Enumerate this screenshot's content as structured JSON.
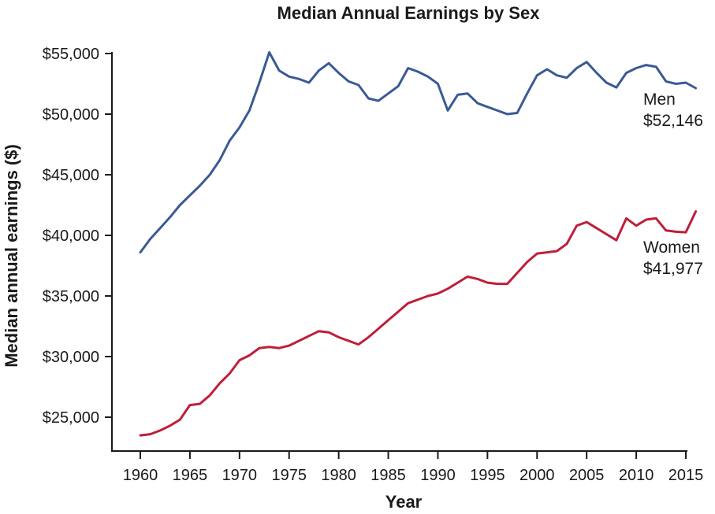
{
  "chart_data": {
    "type": "line",
    "title": "Median Annual Earnings by Sex",
    "xlabel": "Year",
    "ylabel": "Median annual earnings ($)",
    "grid": false,
    "legend_position": "inline-right-annotations",
    "x_axis": {
      "min": 1960,
      "max": 2015,
      "tick_step": 5
    },
    "y_axis": {
      "min": 25000,
      "max": 55000,
      "tick_step": 5000
    },
    "x_ticks": [
      {
        "value": 1960,
        "label": "1960"
      },
      {
        "value": 1965,
        "label": "1965"
      },
      {
        "value": 1970,
        "label": "1970"
      },
      {
        "value": 1975,
        "label": "1975"
      },
      {
        "value": 1980,
        "label": "1980"
      },
      {
        "value": 1985,
        "label": "1985"
      },
      {
        "value": 1990,
        "label": "1990"
      },
      {
        "value": 1995,
        "label": "1995"
      },
      {
        "value": 2000,
        "label": "2000"
      },
      {
        "value": 2005,
        "label": "2005"
      },
      {
        "value": 2010,
        "label": "2010"
      },
      {
        "value": 2015,
        "label": "2015"
      }
    ],
    "y_ticks": [
      {
        "value": 55000,
        "label": "$55,000"
      },
      {
        "value": 50000,
        "label": "$50,000"
      },
      {
        "value": 45000,
        "label": "$45,000"
      },
      {
        "value": 40000,
        "label": "$40,000"
      },
      {
        "value": 35000,
        "label": "$35,000"
      },
      {
        "value": 30000,
        "label": "$30,000"
      },
      {
        "value": 25000,
        "label": "$25,000"
      }
    ],
    "years": [
      1960,
      1961,
      1962,
      1963,
      1964,
      1965,
      1966,
      1967,
      1968,
      1969,
      1970,
      1971,
      1972,
      1973,
      1974,
      1975,
      1976,
      1977,
      1978,
      1979,
      1980,
      1981,
      1982,
      1983,
      1984,
      1985,
      1986,
      1987,
      1988,
      1989,
      1990,
      1991,
      1992,
      1993,
      1994,
      1995,
      1996,
      1997,
      1998,
      1999,
      2000,
      2001,
      2002,
      2003,
      2004,
      2005,
      2006,
      2007,
      2008,
      2009,
      2010,
      2011,
      2012,
      2013,
      2014,
      2015,
      2016
    ],
    "series": [
      {
        "name": "Men",
        "color": "#3a5a94",
        "label_name": "Men",
        "label_value": "$52,146",
        "final_value": 52146,
        "values": [
          38600,
          39700,
          40600,
          41500,
          42500,
          43300,
          44100,
          45000,
          46200,
          47800,
          48900,
          50300,
          52600,
          55100,
          53600,
          53100,
          52900,
          52600,
          53600,
          54200,
          53400,
          52700,
          52400,
          51300,
          51100,
          51700,
          52300,
          53800,
          53500,
          53100,
          52500,
          50300,
          51600,
          51700,
          50900,
          50600,
          50300,
          50000,
          50100,
          51700,
          53200,
          53700,
          53200,
          53000,
          53800,
          54300,
          53400,
          52600,
          52200,
          53400,
          53800,
          54050,
          53900,
          52700,
          52500,
          52600,
          52146
        ]
      },
      {
        "name": "Women",
        "color": "#bf1e3b",
        "label_name": "Women",
        "label_value": "$41,977",
        "final_value": 41977,
        "values": [
          23500,
          23600,
          23900,
          24300,
          24800,
          26000,
          26100,
          26800,
          27800,
          28600,
          29700,
          30100,
          30700,
          30800,
          30700,
          30900,
          31300,
          31700,
          32100,
          32000,
          31600,
          31300,
          31000,
          31600,
          32300,
          33000,
          33700,
          34400,
          34700,
          35000,
          35200,
          35600,
          36100,
          36600,
          36400,
          36100,
          36000,
          36000,
          36900,
          37800,
          38500,
          38600,
          38700,
          39300,
          40800,
          41100,
          40600,
          40100,
          39600,
          41400,
          40800,
          41300,
          41400,
          40400,
          40300,
          40250,
          41977
        ]
      }
    ]
  }
}
